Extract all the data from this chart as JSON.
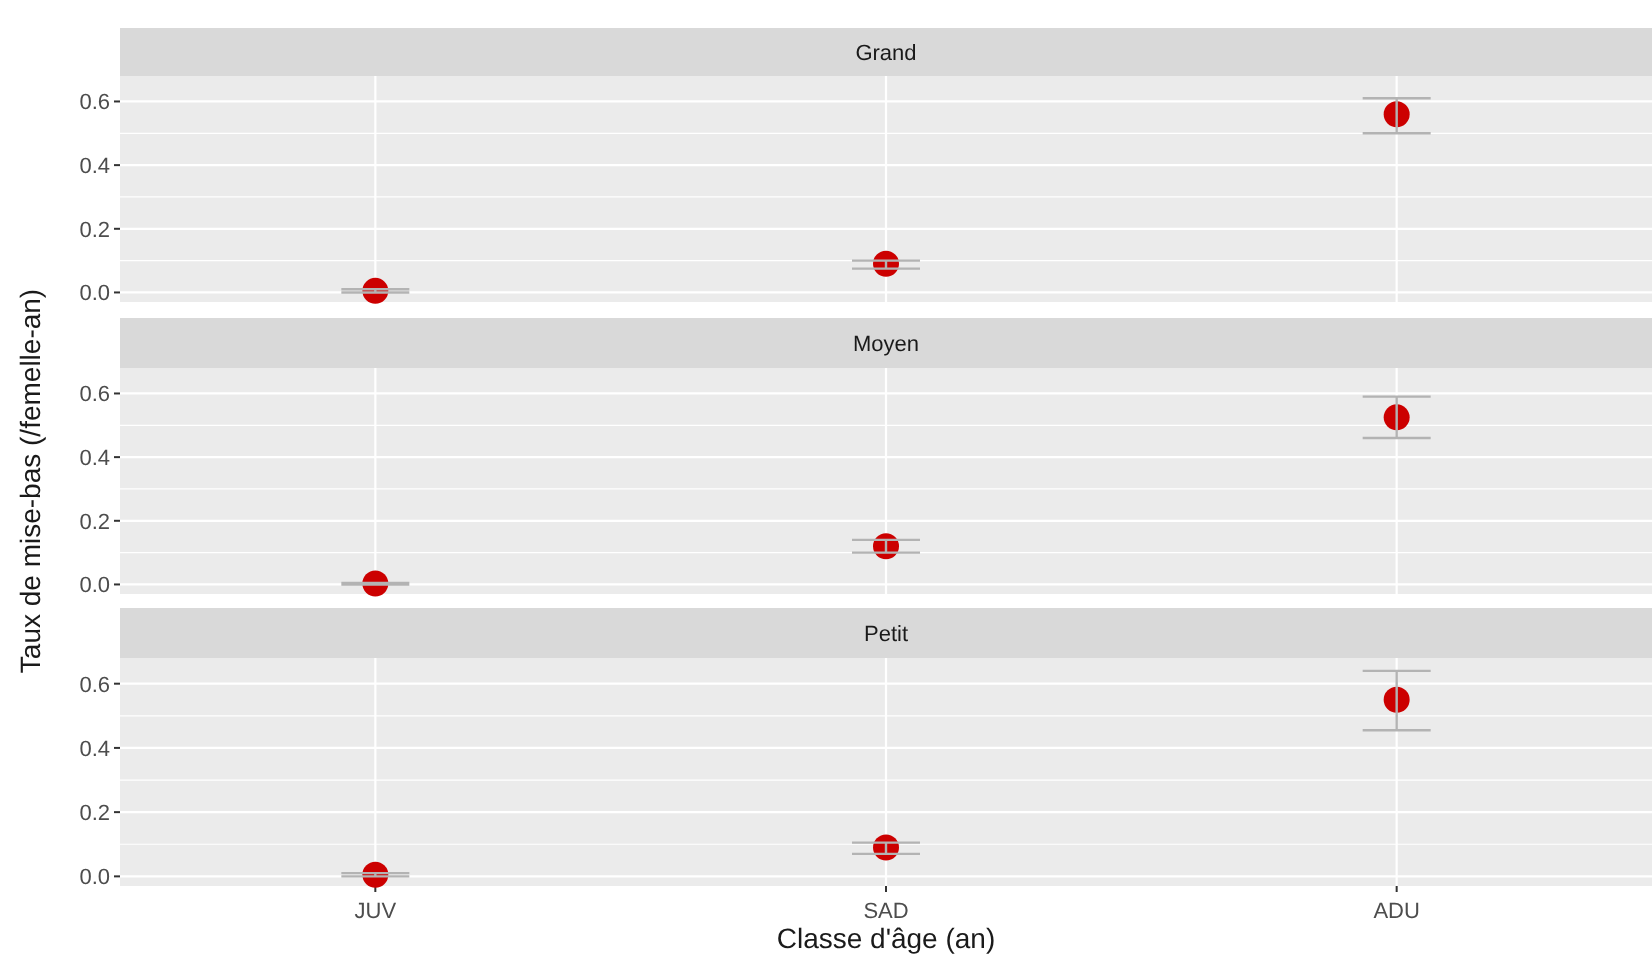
{
  "chart_data": [
    {
      "type": "scatter",
      "title": "Grand",
      "categories": [
        null,
        null,
        null
      ],
      "values": [
        0.005,
        0.09,
        0.56
      ],
      "errors": [
        [
          0,
          0.01
        ],
        [
          0.075,
          0.1
        ],
        [
          0.5,
          0.61
        ]
      ],
      "color": "#cc0000",
      "ylim": [
        -0.03,
        0.68
      ],
      "yticks": [
        {
          "value": 0,
          "label": "0.0"
        },
        {
          "value": 0.2,
          "label": "0.2"
        },
        {
          "value": 0.4,
          "label": "0.4"
        },
        {
          "value": 0.6,
          "label": "0.6"
        }
      ],
      "grid": true,
      "marker": "circle",
      "tick_labels": "y"
    },
    {
      "type": "scatter",
      "title": "Moyen",
      "ylabel": "Taux de mise-bas (/femelle-an)",
      "categories": [
        null,
        null,
        null
      ],
      "values": [
        0.003,
        0.12,
        0.525
      ],
      "errors": [
        [
          0,
          0.005
        ],
        [
          0.1,
          0.14
        ],
        [
          0.46,
          0.59
        ]
      ],
      "color": "#cc0000",
      "ylim": [
        -0.03,
        0.68
      ],
      "yticks": [
        {
          "value": 0,
          "label": "0.0"
        },
        {
          "value": 0.2,
          "label": "0.2"
        },
        {
          "value": 0.4,
          "label": "0.4"
        },
        {
          "value": 0.6,
          "label": "0.6"
        }
      ],
      "grid": true,
      "marker": "circle",
      "tick_labels": "y"
    },
    {
      "type": "scatter",
      "title": "Petit",
      "xlabel": "Classe d'âge (an)",
      "categories": [
        "JUV",
        "SAD",
        "ADU"
      ],
      "values": [
        0.005,
        0.09,
        0.55
      ],
      "errors": [
        [
          0,
          0.01
        ],
        [
          0.07,
          0.105
        ],
        [
          0.455,
          0.64
        ]
      ],
      "color": "#cc0000",
      "ylim": [
        -0.03,
        0.68
      ],
      "yticks": [
        {
          "value": 0,
          "label": "0.0"
        },
        {
          "value": 0.2,
          "label": "0.2"
        },
        {
          "value": 0.4,
          "label": "0.4"
        },
        {
          "value": 0.6,
          "label": "0.6"
        }
      ],
      "grid": true,
      "marker": "circle"
    }
  ]
}
